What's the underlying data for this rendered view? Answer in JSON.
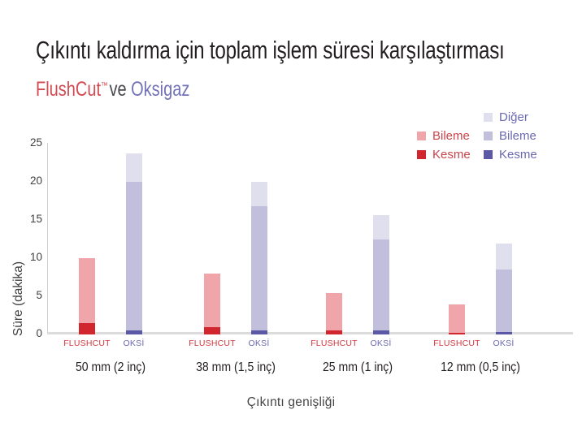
{
  "header": {
    "title": "Çıkıntı kaldırma için toplam işlem süresi karşılaştırması",
    "subtitle_brand": "FlushCut",
    "subtitle_tm": "™",
    "subtitle_vs": "ve",
    "subtitle_competitor": "Oksigaz"
  },
  "colors": {
    "title_text": "#231f20",
    "brand_text": "#d14a51",
    "vs_text": "#4b4950",
    "competitor_text": "#7272b7",
    "flushcut_kesme": "#d2262e",
    "flushcut_bileme": "#f0a5aa",
    "oksi_kesme": "#5b58a5",
    "oksi_bileme": "#c2bfdd",
    "oksi_diger": "#e0dfee",
    "flushcut_label_text": "#d0383f",
    "oksi_label_text": "#6b69b2",
    "axis_line": "#d9d9d9",
    "tick_text": "#414042"
  },
  "legend": {
    "flushcut_column": [
      {
        "label": "Bileme",
        "swatch_color": "#f0a5aa",
        "text_color": "#c9434a"
      },
      {
        "label": "Kesme",
        "swatch_color": "#d2262e",
        "text_color": "#c9434a"
      }
    ],
    "oksi_column": [
      {
        "label": "Diğer",
        "swatch_color": "#e0dfee",
        "text_color": "#6b69b2"
      },
      {
        "label": "Bileme",
        "swatch_color": "#c2bfdd",
        "text_color": "#6b69b2"
      },
      {
        "label": "Kesme",
        "swatch_color": "#5b58a5",
        "text_color": "#6b69b2"
      }
    ]
  },
  "chart_data": {
    "type": "bar",
    "stacked": true,
    "title": "Çıkıntı kaldırma için toplam işlem süresi karşılaştırması",
    "subtitle": "FlushCut™ ve Oksigaz",
    "xlabel": "Çıkıntı genişliği",
    "ylabel": "Süre (dakika)",
    "ylim": [
      0,
      25
    ],
    "yticks": [
      0,
      5,
      10,
      15,
      20,
      25
    ],
    "grid": false,
    "legend_position": "top-right",
    "categories": [
      "50 mm (2 inç)",
      "38 mm (1,5 inç)",
      "25 mm (1 inç)",
      "12 mm (0,5 inç)"
    ],
    "bars_per_category": [
      "FLUSHCUT",
      "OKSİ"
    ],
    "series": [
      {
        "name": "FlushCut Kesme",
        "bar": "FLUSHCUT",
        "stack_order": 0,
        "color": "#d2262e",
        "values": [
          1.5,
          1.0,
          0.5,
          0.25
        ]
      },
      {
        "name": "FlushCut Bileme",
        "bar": "FLUSHCUT",
        "stack_order": 1,
        "color": "#f0a5aa",
        "values": [
          8.5,
          7.0,
          4.9,
          3.65
        ]
      },
      {
        "name": "Oksigaz Kesme",
        "bar": "OKSİ",
        "stack_order": 0,
        "color": "#5b58a5",
        "values": [
          0.5,
          0.5,
          0.5,
          0.3
        ]
      },
      {
        "name": "Oksigaz Bileme",
        "bar": "OKSİ",
        "stack_order": 1,
        "color": "#c2bfdd",
        "values": [
          19.5,
          16.3,
          11.9,
          8.2
        ]
      },
      {
        "name": "Oksigaz Diğer",
        "bar": "OKSİ",
        "stack_order": 2,
        "color": "#e0dfee",
        "values": [
          3.7,
          3.2,
          3.2,
          3.4
        ]
      }
    ],
    "bar_totals": {
      "FLUSHCUT": [
        10.0,
        8.0,
        5.4,
        3.9
      ],
      "OKSİ": [
        23.7,
        20.0,
        15.6,
        11.9
      ]
    }
  }
}
